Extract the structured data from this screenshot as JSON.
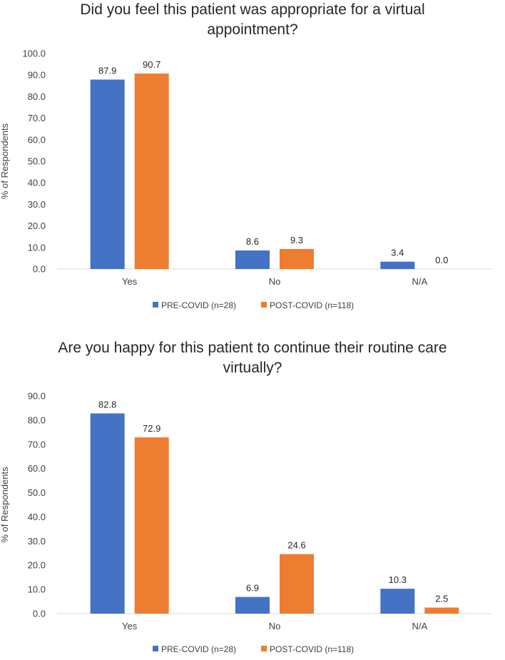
{
  "chart_data": [
    {
      "type": "bar",
      "title_lines": [
        "Did you feel this patient was appropriate for a virtual",
        "appointment?"
      ],
      "categories": [
        "Yes",
        "No",
        "N/A"
      ],
      "series": [
        {
          "name": "PRE-COVID (n=28)",
          "color": "#4472C4",
          "values": [
            87.9,
            8.6,
            3.4
          ],
          "labels": [
            "87.9",
            "8.6",
            "3.4"
          ]
        },
        {
          "name": "POST-COVID (n=118)",
          "color": "#ED7D31",
          "values": [
            90.7,
            9.3,
            0.0
          ],
          "labels": [
            "90.7",
            "9.3",
            "0.0"
          ]
        }
      ],
      "ylabel": "% of Respondents",
      "ylim": [
        0,
        100
      ],
      "yticks": [
        "0.0",
        "10.0",
        "20.0",
        "30.0",
        "40.0",
        "50.0",
        "60.0",
        "70.0",
        "80.0",
        "90.0",
        "100.0"
      ],
      "legend": "bottom"
    },
    {
      "type": "bar",
      "title_lines": [
        "Are you happy for this patient to continue their routine care",
        "virtually?"
      ],
      "categories": [
        "Yes",
        "No",
        "N/A"
      ],
      "series": [
        {
          "name": "PRE-COVID (n=28)",
          "color": "#4472C4",
          "values": [
            82.8,
            6.9,
            10.3
          ],
          "labels": [
            "82.8",
            "6.9",
            "10.3"
          ]
        },
        {
          "name": "POST-COVID (n=118)",
          "color": "#ED7D31",
          "values": [
            72.9,
            24.6,
            2.5
          ],
          "labels": [
            "72.9",
            "24.6",
            "2.5"
          ]
        }
      ],
      "ylabel": "% of Respondents",
      "ylim": [
        0,
        90
      ],
      "yticks": [
        "0.0",
        "10.0",
        "20.0",
        "30.0",
        "40.0",
        "50.0",
        "60.0",
        "70.0",
        "80.0",
        "90.0"
      ],
      "legend": "bottom"
    }
  ]
}
